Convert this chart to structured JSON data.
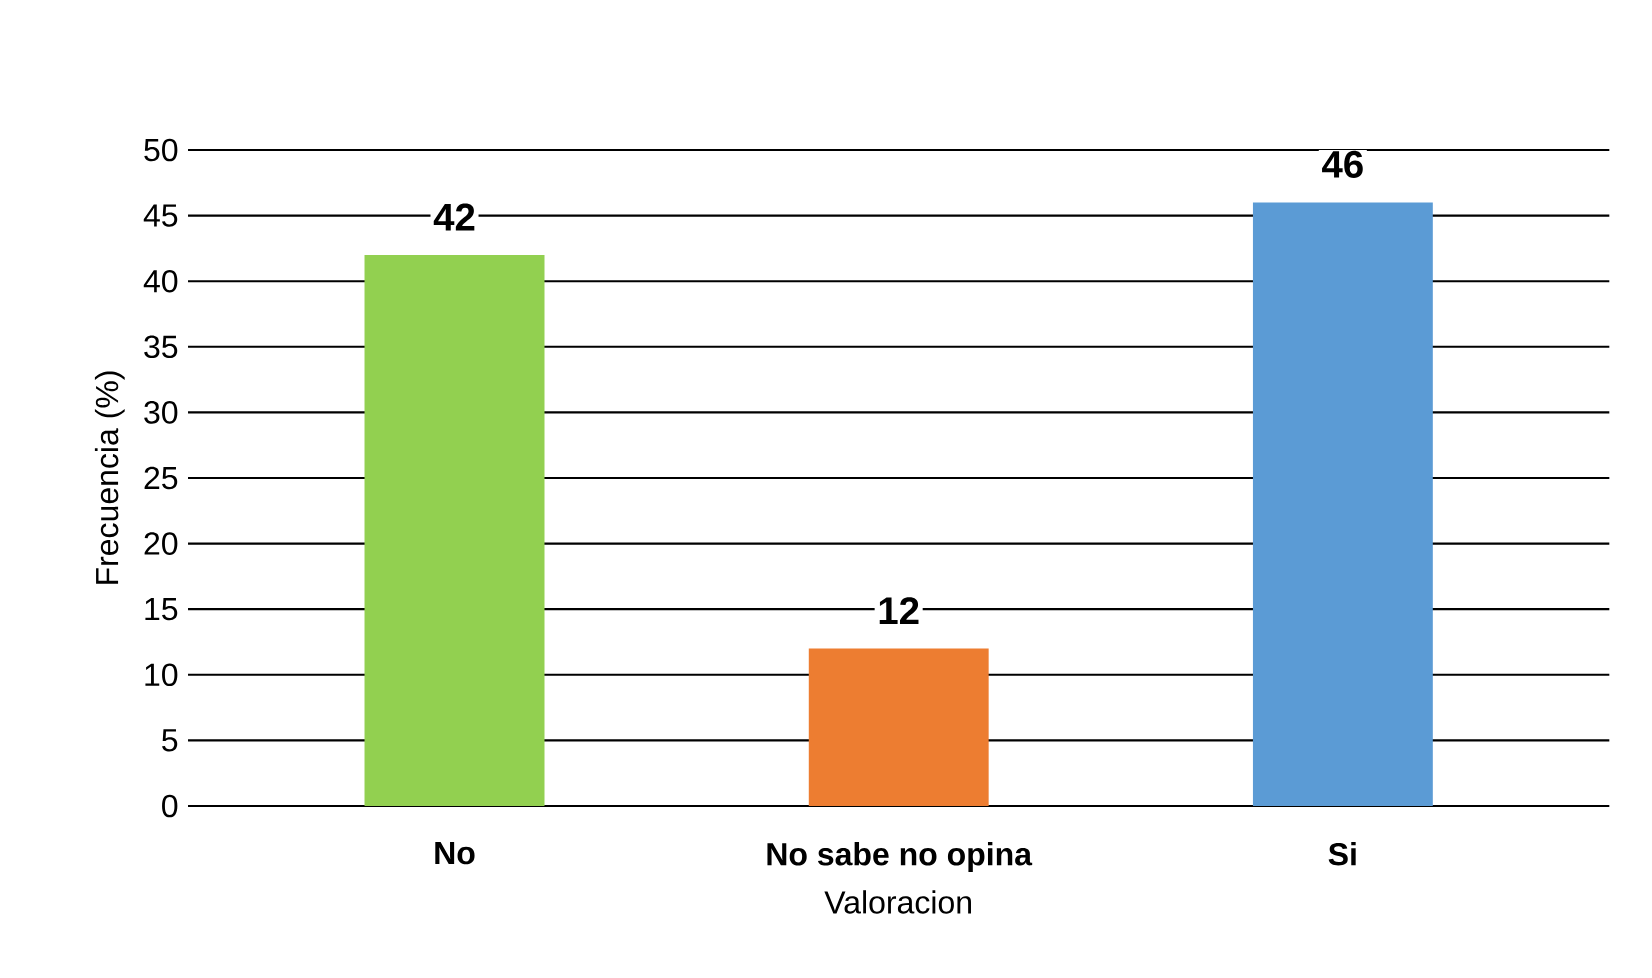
{
  "chart_data": {
    "type": "bar",
    "xlabel": "Valoracion",
    "ylabel": "Frecuencia (%)",
    "categories": [
      "No",
      "No sabe no opina",
      "Si"
    ],
    "values": [
      42,
      12,
      46
    ],
    "colors": [
      "#92d050",
      "#ed7d31",
      "#5b9bd5"
    ],
    "ylim": [
      0,
      50
    ],
    "yticks": [
      0,
      5,
      10,
      15,
      20,
      25,
      30,
      35,
      40,
      45,
      50
    ],
    "grid": "y",
    "data_labels": true
  }
}
